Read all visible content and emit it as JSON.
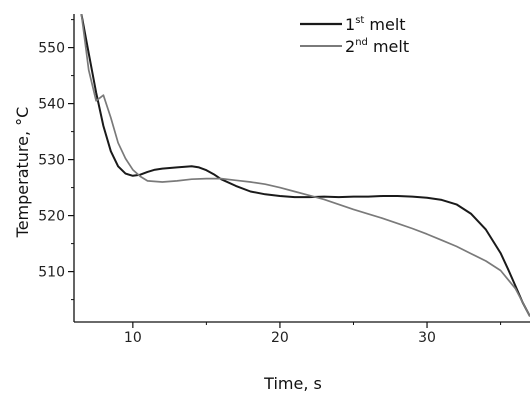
{
  "chart_data": {
    "type": "line",
    "xlabel": "Time, s",
    "ylabel": "Temperature, °C",
    "xlim": [
      6,
      37
    ],
    "ylim": [
      501,
      556
    ],
    "x_ticks": [
      10,
      20,
      30
    ],
    "y_ticks": [
      510,
      520,
      530,
      540,
      550
    ],
    "grid": false,
    "legend_position": "top-right",
    "series": [
      {
        "name": "1st melt",
        "legend": {
          "base": "1",
          "sup": "st",
          "rest": " melt"
        },
        "color": "#1a1a1a",
        "x": [
          6.5,
          7,
          7.5,
          8,
          8.5,
          9,
          9.5,
          10,
          10.5,
          11,
          11.5,
          12,
          13,
          14,
          14.5,
          15,
          15.5,
          16,
          17,
          18,
          19,
          20,
          21,
          22,
          23,
          24,
          25,
          26,
          27,
          28,
          29,
          30,
          31,
          32,
          33,
          34,
          35,
          35.5,
          36,
          36.5,
          37
        ],
        "y": [
          556,
          549,
          542,
          536,
          531.5,
          528.8,
          527.5,
          527.1,
          527.3,
          527.8,
          528.2,
          528.4,
          528.6,
          528.8,
          528.6,
          528.1,
          527.4,
          526.5,
          525.3,
          524.3,
          523.8,
          523.5,
          523.3,
          523.3,
          523.4,
          523.3,
          523.4,
          523.4,
          523.5,
          523.5,
          523.4,
          523.2,
          522.8,
          522,
          520.3,
          517.5,
          513.3,
          510.5,
          507.5,
          504.5,
          502
        ]
      },
      {
        "name": "2nd melt",
        "legend": {
          "base": "2",
          "sup": "nd",
          "rest": " melt"
        },
        "color": "#7a7a7a",
        "x": [
          6.5,
          7,
          7.5,
          8,
          8.5,
          9,
          9.5,
          10,
          10.5,
          11,
          12,
          13,
          14,
          15,
          16,
          17,
          18,
          19,
          20,
          21,
          22,
          23,
          24,
          25,
          26,
          27,
          28,
          29,
          30,
          31,
          32,
          33,
          34,
          35,
          36,
          37
        ],
        "y": [
          556,
          546,
          540.5,
          541.5,
          537.5,
          533,
          530.2,
          528.2,
          527,
          526.2,
          526,
          526.2,
          526.5,
          526.6,
          526.6,
          526.3,
          526,
          525.6,
          525,
          524.3,
          523.6,
          522.9,
          522,
          521.1,
          520.3,
          519.5,
          518.6,
          517.7,
          516.7,
          515.6,
          514.5,
          513.2,
          511.9,
          510.2,
          507,
          502
        ]
      }
    ]
  }
}
